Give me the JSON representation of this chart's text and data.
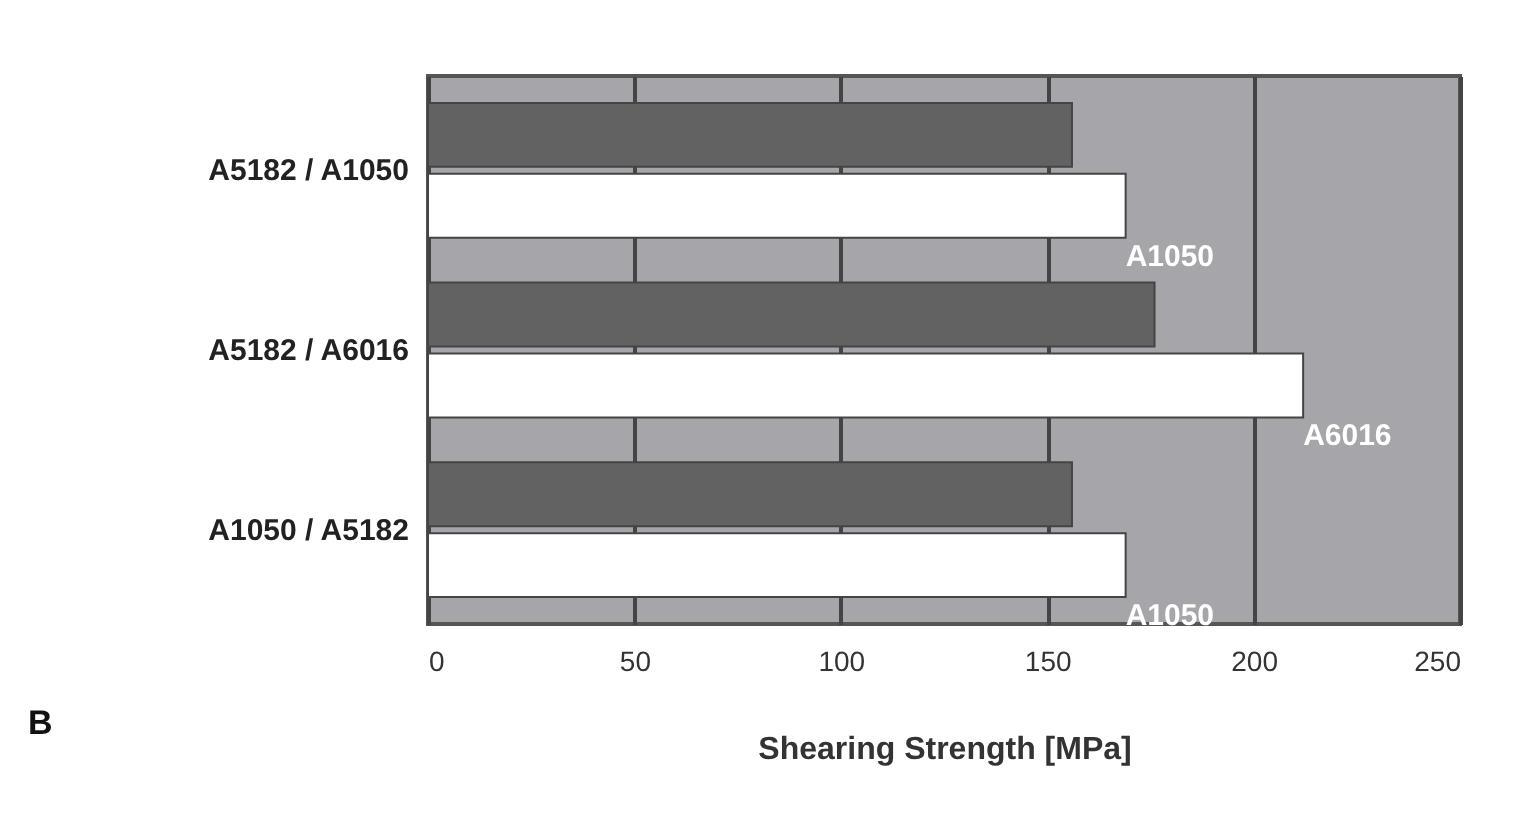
{
  "chart_data": {
    "type": "bar",
    "orientation": "horizontal",
    "xlabel": "Shearing Strength [MPa]",
    "categories": [
      "A5182 / A1050",
      "A5182 / A6016",
      "A1050 / A5182"
    ],
    "series": [
      {
        "color": "#626262",
        "values": [
          156,
          176,
          156
        ]
      },
      {
        "color": "#ffffff",
        "values": [
          169,
          212,
          169
        ]
      }
    ],
    "xlim": [
      0,
      250
    ],
    "xticks": [
      0,
      50,
      100,
      150,
      200,
      250
    ],
    "grid": "x",
    "legend": false,
    "annotations": [
      "A1050",
      "A6016",
      "A1050",
      "B"
    ]
  }
}
